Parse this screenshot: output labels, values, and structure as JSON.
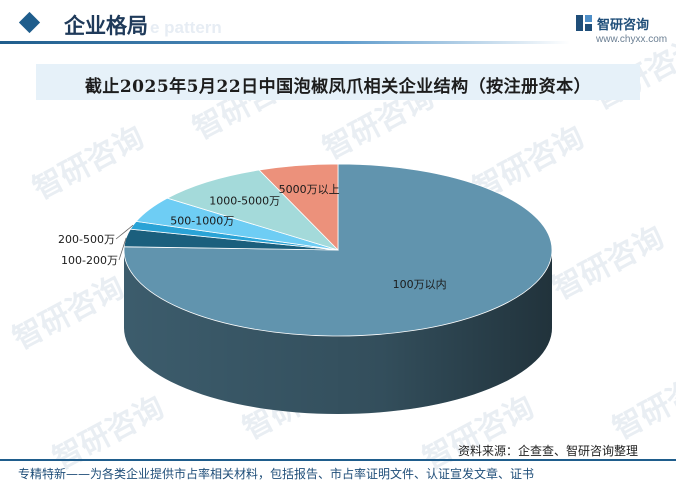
{
  "header": {
    "section_title": "企业格局",
    "section_title_en": "e pattern",
    "logo_text": "智研咨询",
    "logo_url": "www.chyxx.com"
  },
  "watermark_text": "智研咨询",
  "chart_data": {
    "type": "pie",
    "title": "截止2025年5月22日中国泡椒凤爪相关企业结构（按注册资本）",
    "slices": [
      {
        "label": "100万以内",
        "value": 75.6,
        "color": "#6194ae"
      },
      {
        "label": "100-200万",
        "value": 3.3,
        "color": "#1b5f7d"
      },
      {
        "label": "200-500万",
        "value": 1.5,
        "color": "#2aa3d6"
      },
      {
        "label": "500-1000万",
        "value": 4.9,
        "color": "#6ecdf4"
      },
      {
        "label": "1000-5000万",
        "value": 8.7,
        "color": "#a4dada"
      },
      {
        "label": "5000万以上",
        "value": 6.0,
        "color": "#ec917b"
      }
    ]
  },
  "footer": {
    "source": "资料来源：企查查、智研咨询整理",
    "tagline": "专精特新——为各类企业提供市占率相关材料，包括报告、市占率证明文件、认证宣发文章、证书"
  }
}
